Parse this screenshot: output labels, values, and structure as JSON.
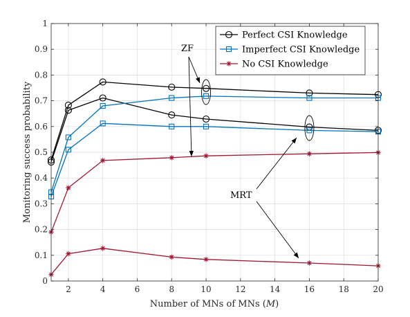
{
  "chart_data": {
    "type": "line",
    "xlabel": "Number of MNs",
    "xlabel_var": "M",
    "ylabel": "Monitoring success probability",
    "xlim": [
      1,
      20
    ],
    "ylim": [
      0,
      1
    ],
    "xticks": [
      2,
      4,
      6,
      8,
      10,
      12,
      14,
      16,
      18,
      20
    ],
    "yticks": [
      0,
      0.1,
      0.2,
      0.3,
      0.4,
      0.5,
      0.6,
      0.7,
      0.8,
      0.9,
      1
    ],
    "ytick_labels": [
      "0",
      "0.1",
      "0.2",
      "0.3",
      "0.4",
      "0.5",
      "0.6",
      "0.7",
      "0.8",
      "0.9",
      "1"
    ],
    "grid": true,
    "legend_position": "top-right",
    "x": [
      1,
      2,
      4,
      8,
      10,
      16,
      20
    ],
    "series": [
      {
        "name": "Perfect CSI Knowledge",
        "scheme": "ZF",
        "marker": "circle",
        "color": "#000000",
        "legend": true,
        "values": [
          0.47,
          0.683,
          0.773,
          0.753,
          0.748,
          0.73,
          0.724
        ]
      },
      {
        "name": "Perfect CSI Knowledge",
        "scheme": "MRT",
        "marker": "circle",
        "color": "#000000",
        "legend": false,
        "values": [
          0.462,
          0.663,
          0.711,
          0.645,
          0.629,
          0.598,
          0.585
        ]
      },
      {
        "name": "Imperfect CSI Knowledge",
        "scheme": "ZF",
        "marker": "square",
        "color": "#0072BD",
        "legend": true,
        "values": [
          0.345,
          0.558,
          0.68,
          0.711,
          0.718,
          0.711,
          0.711
        ]
      },
      {
        "name": "Imperfect CSI Knowledge",
        "scheme": "MRT",
        "marker": "square",
        "color": "#0072BD",
        "legend": false,
        "values": [
          0.328,
          0.51,
          0.612,
          0.6,
          0.6,
          0.585,
          0.58
        ]
      },
      {
        "name": "No CSI Knowledge",
        "scheme": "ZF",
        "marker": "star",
        "color": "#A2142F",
        "legend": true,
        "values": [
          0.19,
          0.362,
          0.468,
          0.479,
          0.486,
          0.494,
          0.499
        ]
      },
      {
        "name": "No CSI Knowledge",
        "scheme": "MRT",
        "marker": "star",
        "color": "#A2142F",
        "legend": false,
        "values": [
          0.025,
          0.106,
          0.127,
          0.093,
          0.084,
          0.07,
          0.059
        ]
      }
    ],
    "annotations": [
      {
        "text": "ZF"
      },
      {
        "text": "MRT"
      }
    ]
  }
}
